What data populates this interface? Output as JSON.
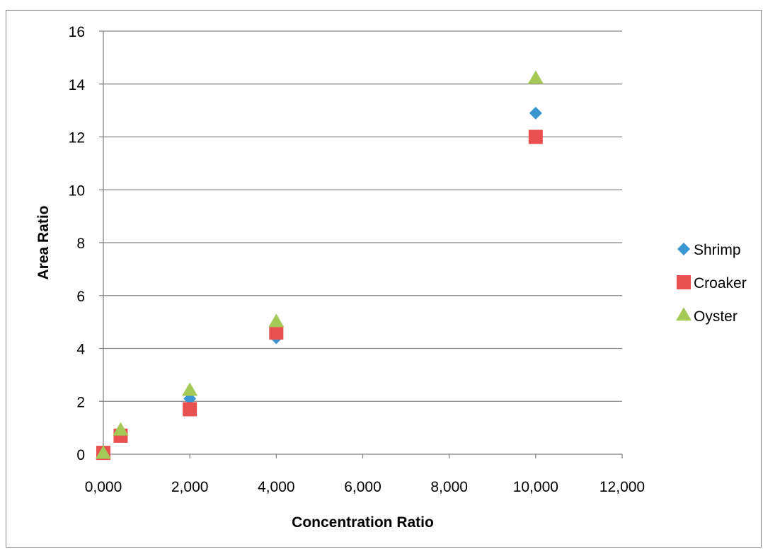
{
  "chart_data": {
    "type": "scatter",
    "title": "",
    "xlabel": "Concentration Ratio",
    "ylabel": "Area Ratio",
    "xlim": [
      0,
      12000
    ],
    "ylim": [
      0,
      16
    ],
    "x_ticks": [
      0,
      2000,
      4000,
      6000,
      8000,
      10000,
      12000
    ],
    "x_tick_labels": [
      "0,000",
      "2,000",
      "4,000",
      "6,000",
      "8,000",
      "10,000",
      "12,000"
    ],
    "y_ticks": [
      0,
      2,
      4,
      6,
      8,
      10,
      12,
      14,
      16
    ],
    "y_tick_labels": [
      "0",
      "2",
      "4",
      "6",
      "8",
      "10",
      "12",
      "14",
      "16"
    ],
    "grid": "horizontal",
    "legend": "right",
    "series": [
      {
        "name": "Shrimp",
        "marker": "diamond",
        "color": "#3a96d0",
        "x": [
          0,
          400,
          2000,
          4000,
          10000
        ],
        "y": [
          0.05,
          0.8,
          2.1,
          4.4,
          12.9
        ]
      },
      {
        "name": "Croaker",
        "marker": "square",
        "color": "#e9504f",
        "x": [
          0,
          400,
          2000,
          4000,
          10000
        ],
        "y": [
          0.05,
          0.7,
          1.7,
          4.6,
          12.0
        ]
      },
      {
        "name": "Oyster",
        "marker": "triangle",
        "color": "#a5c956",
        "x": [
          0,
          400,
          2000,
          4000,
          10000
        ],
        "y": [
          0.02,
          0.9,
          2.4,
          5.0,
          14.2
        ]
      }
    ]
  }
}
